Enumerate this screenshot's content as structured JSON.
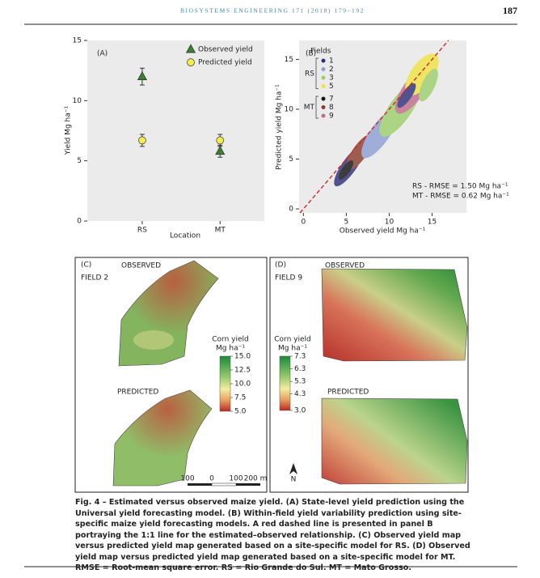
{
  "header": {
    "journal": "BIOSYSTEMS ENGINEERING 171 (2018) 179–192",
    "page": "187"
  },
  "chart_data": [
    {
      "type": "errorbar",
      "panel": "(A)",
      "xlabel": "Location",
      "ylabel": "Yield Mg ha⁻¹",
      "categories": [
        "RS",
        "MT"
      ],
      "series": [
        {
          "name": "Observed yield",
          "color": "#3d7f2e",
          "marker": "triangle",
          "values": [
            12.0,
            5.8
          ],
          "errors": [
            0.7,
            0.5
          ]
        },
        {
          "name": "Predicted yield",
          "color": "#f4ec4c",
          "marker": "circle",
          "values": [
            6.7,
            6.7
          ],
          "errors": [
            0.5,
            0.5
          ]
        }
      ],
      "ylim": [
        0,
        15
      ],
      "yticks": [
        0,
        5,
        10,
        15
      ],
      "legend": "upper right"
    },
    {
      "type": "scatter",
      "panel": "(B)",
      "xlabel": "Observed yield Mg ha⁻¹",
      "ylabel": "Predicted yield Mg ha⁻¹",
      "xlim": [
        -0.5,
        19
      ],
      "ylim": [
        -0.4,
        16.9
      ],
      "xticks": [
        0,
        5,
        10,
        15
      ],
      "yticks": [
        0,
        5,
        10,
        15
      ],
      "legend_title": "Fields",
      "groups": [
        {
          "name": "RS",
          "fields": [
            {
              "name": "1",
              "color": "#2b2d7a"
            },
            {
              "name": "2",
              "color": "#8c9fd4"
            },
            {
              "name": "3",
              "color": "#9ccf6b"
            },
            {
              "name": "5",
              "color": "#f0e442"
            }
          ]
        },
        {
          "name": "MT",
          "fields": [
            {
              "name": "7",
              "color": "#111111"
            },
            {
              "name": "8",
              "color": "#8b3a2b"
            },
            {
              "name": "9",
              "color": "#c46a8a"
            }
          ]
        }
      ],
      "annotations": [
        "RS - RMSE = 1.50 Mg ha⁻¹",
        "MT - RMSE = 0.62 Mg ha⁻¹"
      ],
      "reference_line_color": "#d62728"
    }
  ],
  "maps": [
    {
      "panel": "(C)",
      "field": "FIELD 2",
      "top_label": "OBSERVED",
      "bottom_label": "PREDICTED",
      "legend_title": "Corn yield",
      "legend_unit": "Mg ha⁻¹",
      "legend_ticks": [
        {
          "value": 15,
          "label": "15.0"
        },
        {
          "value": 12.5,
          "label": "12.5"
        },
        {
          "value": 10,
          "label": "10.0"
        },
        {
          "value": 7.5,
          "label": "7.5"
        },
        {
          "value": 5,
          "label": "5.0"
        }
      ],
      "scale_bar": [
        "100",
        "0",
        "100",
        "200 m"
      ]
    },
    {
      "panel": "(D)",
      "field": "FIELD 9",
      "top_label": "OBSERVED",
      "bottom_label": "PREDICTED",
      "legend_title": "Corn yield",
      "legend_unit": "Mg ha⁻¹",
      "legend_ticks": [
        7.3,
        6.3,
        5.3,
        4.3,
        {
          "value": 3,
          "label": "3.0"
        }
      ],
      "north": "N"
    }
  ],
  "caption": "Fig. 4 – Estimated versus observed maize yield. (A) State-level yield prediction using the Universal yield forecasting model. (B) Within-field yield variability prediction using site-specific maize yield forecasting models. A red dashed line is presented in panel B portraying the 1:1 line for the estimated–observed relationship. (C) Observed yield map versus predicted yield map generated based on a site-specific model for RS. (D) Observed yield map versus predicted yield map generated based on a site-specific model for MT. RMSE = Root-mean square error. RS = Rio Grande do Sul. MT = Mato Grosso."
}
